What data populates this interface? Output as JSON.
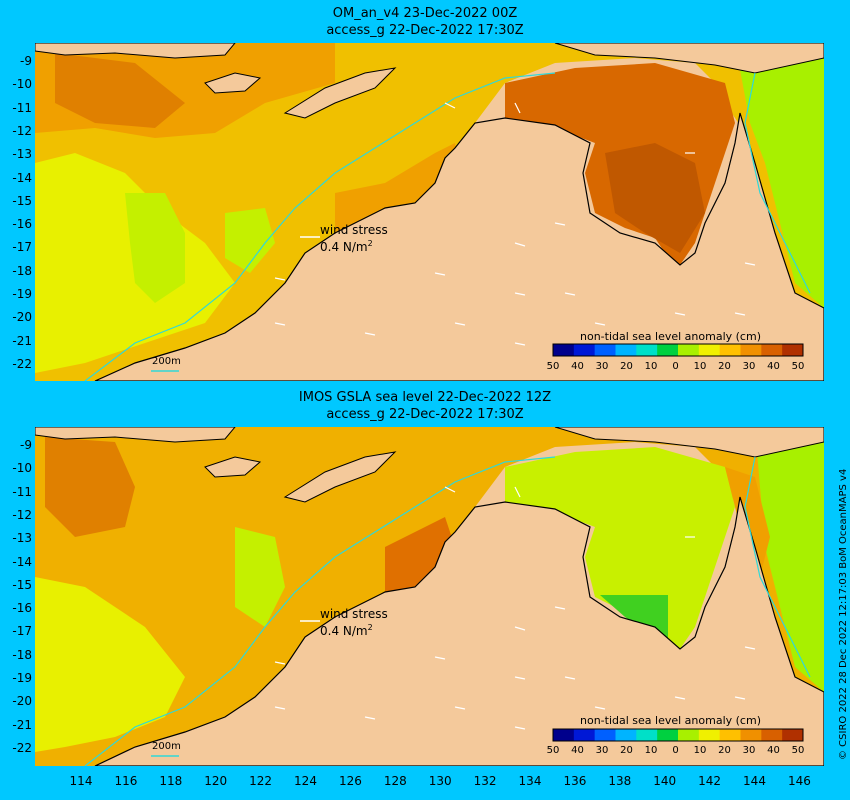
{
  "panels": [
    {
      "title_line1": "OM_an_v4  23-Dec-2022 00Z",
      "title_line2": "access_g 22-Dec-2022 17:30Z"
    },
    {
      "title_line1": "IMOS GSLA sea level  22-Dec-2022 12Z",
      "title_line2": "access_g 22-Dec-2022 17:30Z"
    }
  ],
  "colorbar": {
    "title": "non-tidal sea level anomaly (cm)",
    "ticks": [
      "50",
      "40",
      "30",
      "20",
      "10",
      "0",
      "10",
      "20",
      "30",
      "40",
      "50"
    ],
    "colors": [
      "#00008c",
      "#0018d6",
      "#0060ff",
      "#00b4ff",
      "#00e0c8",
      "#00d040",
      "#a8f000",
      "#f0f000",
      "#ffc000",
      "#f09000",
      "#d86000",
      "#b03000"
    ]
  },
  "wind_label_line1": "wind stress",
  "wind_label_line2": "0.4 N/m",
  "wind_label_sup": "2",
  "depth_label": "200m",
  "y_ticks": [
    "-9",
    "-10",
    "-11",
    "-12",
    "-13",
    "-14",
    "-15",
    "-16",
    "-17",
    "-18",
    "-19",
    "-20",
    "-21",
    "-22"
  ],
  "x_ticks": [
    "114",
    "116",
    "118",
    "120",
    "122",
    "124",
    "126",
    "128",
    "130",
    "132",
    "134",
    "136",
    "138",
    "140",
    "142",
    "144",
    "146"
  ],
  "credit": "© CSIRO 2022  28 Dec 2022 12:17:03 BoM OceanMAPS v4",
  "colors": {
    "background": "#00c8ff",
    "land": "#f4c99b",
    "contour": "#30d8d8"
  }
}
